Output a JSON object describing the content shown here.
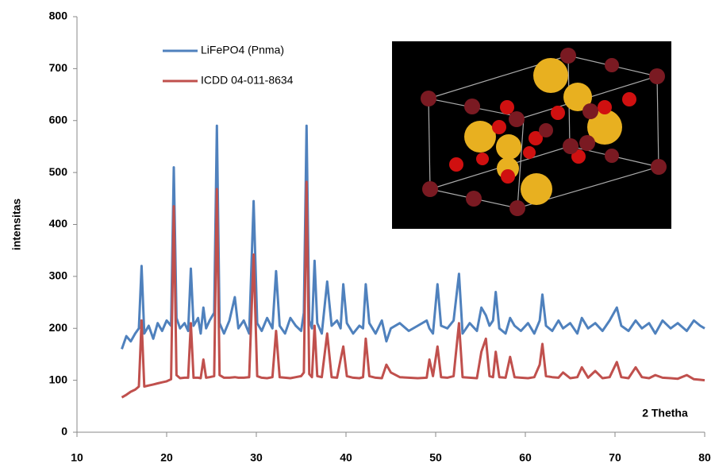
{
  "chart_data": {
    "type": "line",
    "xlabel": "2 Thetha",
    "ylabel": "intensitas",
    "x": [
      15,
      15.5,
      16,
      16.5,
      16.9,
      17.2,
      17.5,
      18,
      18.5,
      19,
      19.5,
      20,
      20.5,
      20.8,
      21.1,
      21.5,
      22,
      22.4,
      22.7,
      23,
      23.5,
      23.8,
      24.1,
      24.4,
      24.8,
      25.3,
      25.6,
      25.9,
      26.4,
      27,
      27.6,
      28,
      28.6,
      29.2,
      29.7,
      30.1,
      30.6,
      31.2,
      31.8,
      32.2,
      32.6,
      33.2,
      33.8,
      34.4,
      35,
      35.3,
      35.6,
      35.9,
      36.2,
      36.5,
      36.8,
      37.3,
      37.9,
      38.4,
      39,
      39.4,
      39.7,
      40.1,
      40.8,
      41.5,
      41.9,
      42.2,
      42.6,
      43.3,
      44,
      44.5,
      45,
      46,
      47,
      48,
      49,
      49.3,
      49.7,
      50.2,
      50.6,
      51.3,
      52,
      52.6,
      53,
      53.8,
      54.6,
      55.1,
      55.6,
      56,
      56.4,
      56.7,
      57.1,
      57.8,
      58.3,
      58.8,
      59.5,
      60.3,
      61,
      61.6,
      61.9,
      62.3,
      63,
      63.7,
      64.2,
      65,
      65.8,
      66.3,
      67,
      67.8,
      68.6,
      69.4,
      70.2,
      70.7,
      71.5,
      72.3,
      73,
      73.8,
      74.5,
      75.3,
      76.2,
      77,
      78,
      78.8,
      79.5,
      80
    ],
    "series": [
      {
        "name": "LiFePO4 (Pnma)",
        "color": "#4f81bd",
        "values": [
          160,
          185,
          175,
          190,
          200,
          320,
          190,
          205,
          180,
          210,
          195,
          215,
          205,
          510,
          220,
          200,
          210,
          195,
          315,
          205,
          220,
          190,
          240,
          200,
          215,
          230,
          590,
          210,
          190,
          215,
          260,
          200,
          215,
          190,
          445,
          210,
          195,
          220,
          200,
          310,
          205,
          190,
          220,
          205,
          195,
          230,
          590,
          215,
          200,
          330,
          210,
          190,
          290,
          205,
          215,
          200,
          285,
          210,
          190,
          205,
          200,
          285,
          210,
          190,
          215,
          175,
          200,
          210,
          195,
          205,
          215,
          200,
          190,
          285,
          205,
          200,
          215,
          305,
          190,
          210,
          195,
          240,
          225,
          205,
          215,
          270,
          200,
          190,
          220,
          205,
          195,
          210,
          190,
          215,
          265,
          205,
          195,
          215,
          200,
          210,
          190,
          220,
          200,
          210,
          195,
          215,
          240,
          205,
          195,
          215,
          200,
          210,
          190,
          215,
          200,
          210,
          195,
          215,
          205,
          200
        ]
      },
      {
        "name": "ICDD 04-011-8634",
        "color": "#c0504d",
        "values": [
          67,
          72,
          78,
          82,
          88,
          215,
          88,
          90,
          92,
          94,
          96,
          98,
          102,
          435,
          110,
          104,
          105,
          105,
          210,
          105,
          105,
          104,
          140,
          105,
          106,
          108,
          468,
          110,
          105,
          105,
          106,
          105,
          105,
          106,
          342,
          108,
          105,
          104,
          106,
          195,
          106,
          105,
          104,
          106,
          108,
          115,
          482,
          112,
          106,
          205,
          108,
          106,
          190,
          106,
          105,
          140,
          165,
          108,
          105,
          104,
          106,
          180,
          108,
          105,
          104,
          130,
          115,
          106,
          105,
          104,
          105,
          140,
          108,
          165,
          106,
          105,
          108,
          210,
          106,
          105,
          104,
          155,
          180,
          108,
          106,
          155,
          106,
          105,
          145,
          106,
          105,
          104,
          106,
          130,
          170,
          108,
          106,
          105,
          115,
          104,
          106,
          125,
          105,
          118,
          104,
          106,
          135,
          106,
          104,
          125,
          106,
          104,
          110,
          105,
          104,
          103,
          110,
          102,
          101,
          100
        ]
      }
    ],
    "xlim": [
      10,
      80
    ],
    "xticks": [
      10,
      20,
      30,
      40,
      50,
      60,
      70,
      80
    ],
    "ylim": [
      0,
      800
    ],
    "yticks": [
      0,
      100,
      200,
      300,
      400,
      500,
      600,
      700,
      800
    ],
    "grid": false,
    "legend": "upper left"
  }
}
